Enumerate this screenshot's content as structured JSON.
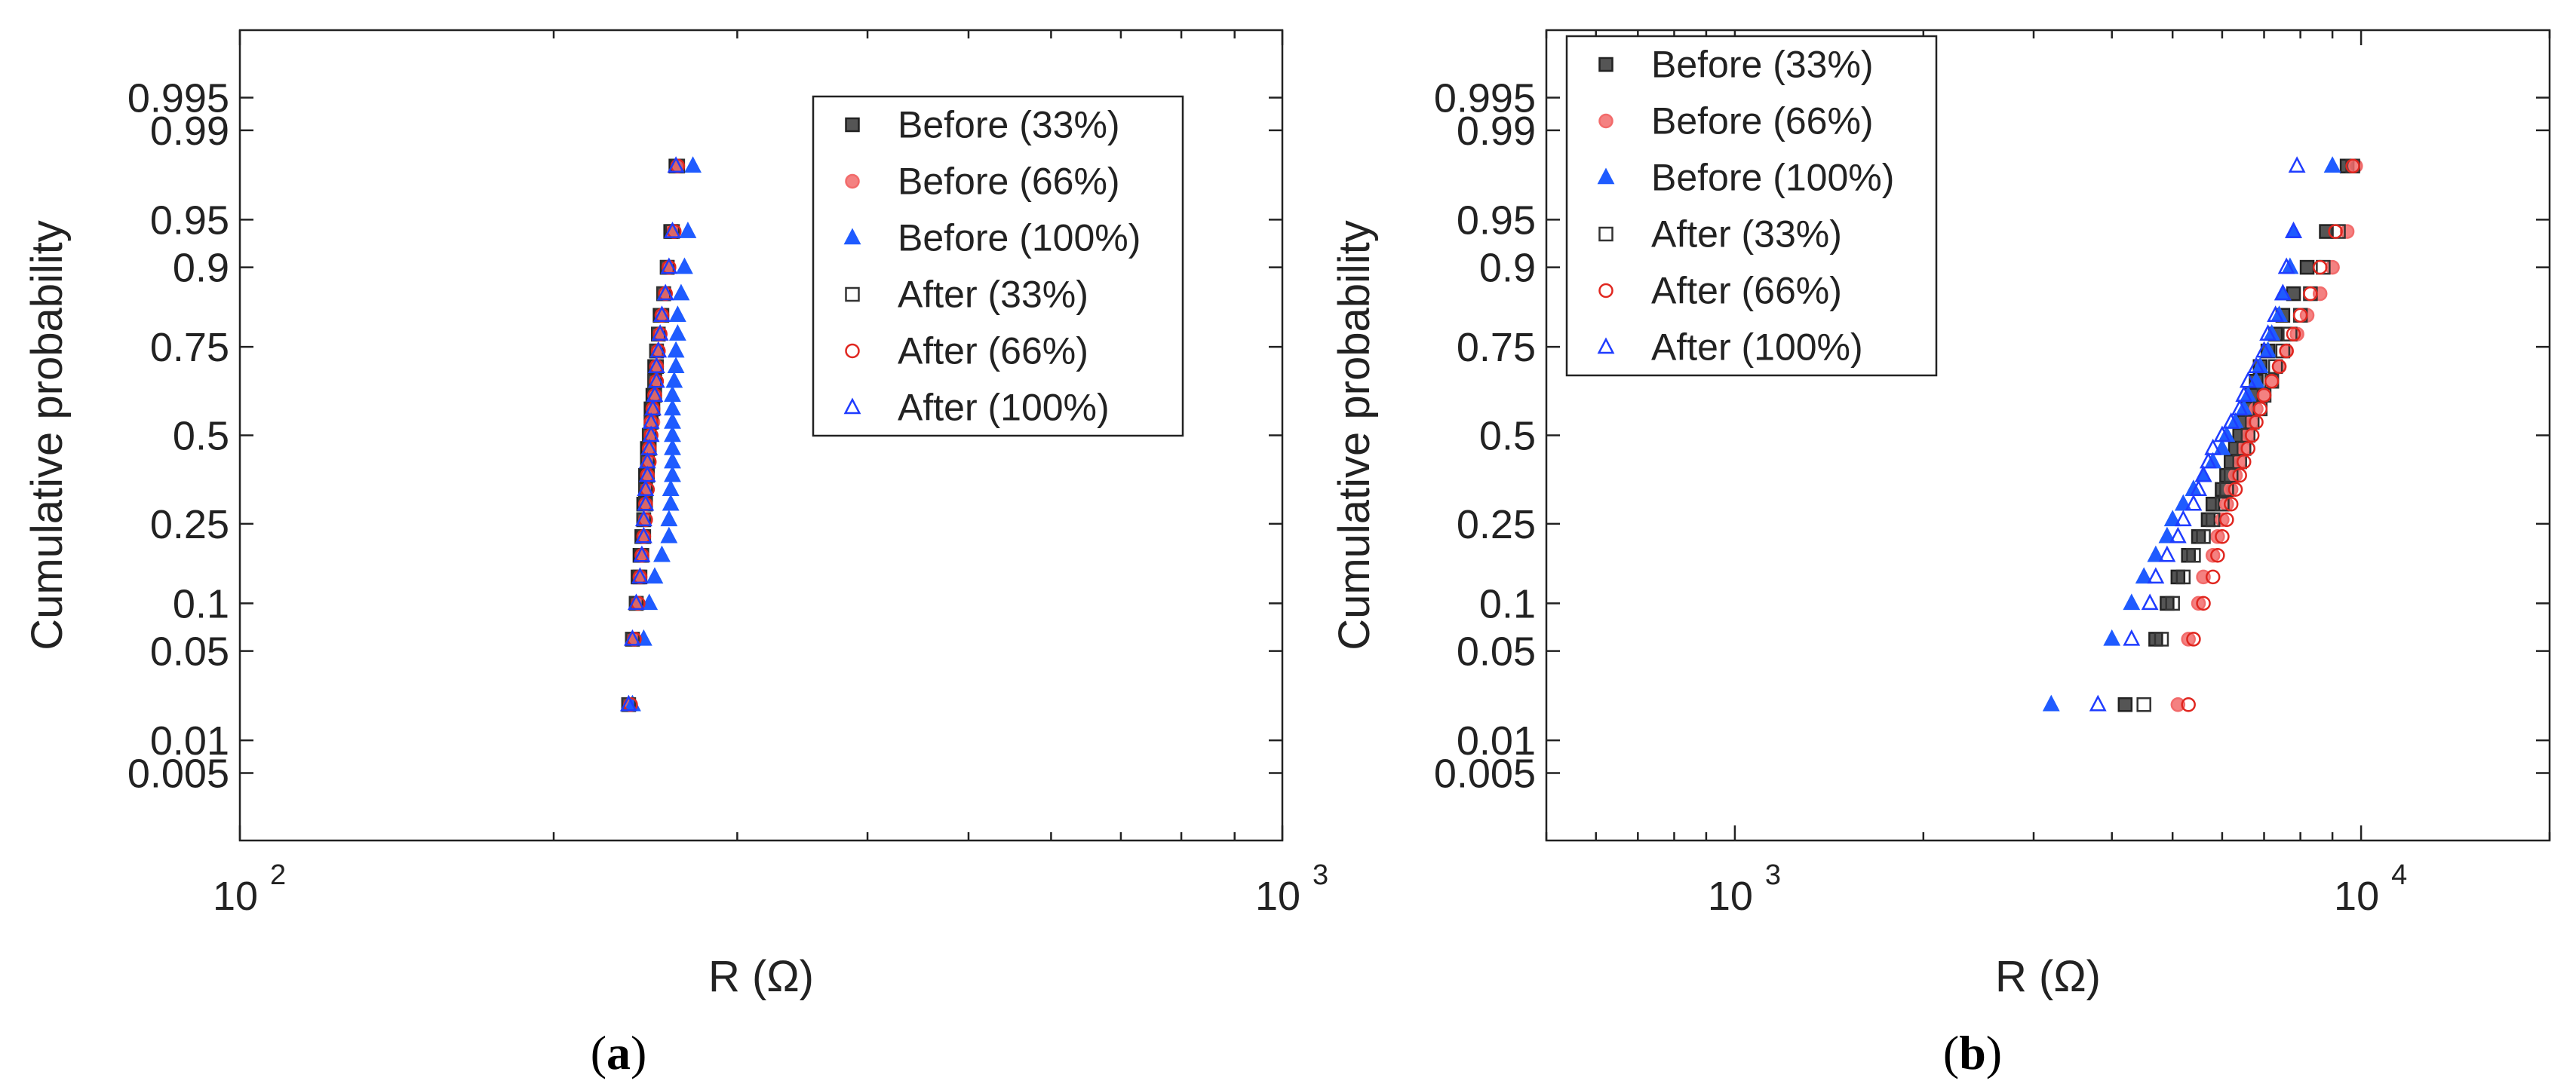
{
  "chart_data": [
    {
      "panel_label": "a",
      "type": "scatter",
      "xscale": "log",
      "yscale": "normal-probability",
      "xlim": [
        100,
        1000
      ],
      "ylim": [
        0.001,
        0.999
      ],
      "xlabel": "R (Ω)",
      "ylabel": "Cumulative probability",
      "x_ticks": [
        100,
        1000
      ],
      "x_tick_labels": [
        {
          "base": "10",
          "exp": "2"
        },
        {
          "base": "10",
          "exp": "3"
        }
      ],
      "y_ticks": [
        0.005,
        0.01,
        0.05,
        0.1,
        0.25,
        0.5,
        0.75,
        0.9,
        0.95,
        0.99,
        0.995
      ],
      "y_tick_labels": [
        "0.005",
        "0.01",
        "0.05",
        "0.1",
        "0.25",
        "0.5",
        "0.75",
        "0.9",
        "0.95",
        "0.99",
        "0.995"
      ],
      "legend_position": "top-right",
      "probabilities": [
        0.02,
        0.06,
        0.1,
        0.14,
        0.18,
        0.22,
        0.26,
        0.3,
        0.34,
        0.38,
        0.42,
        0.46,
        0.5,
        0.54,
        0.58,
        0.62,
        0.66,
        0.7,
        0.74,
        0.78,
        0.82,
        0.86,
        0.9,
        0.94,
        0.98
      ],
      "series": [
        {
          "name": "Before (33%)",
          "marker": "square-filled",
          "color": "#555555",
          "values": [
            236,
            238,
            240,
            241,
            242,
            243,
            244,
            244,
            245,
            245,
            246,
            246,
            247,
            248,
            248,
            249,
            250,
            250,
            251,
            252,
            253,
            255,
            257,
            259,
            262
          ]
        },
        {
          "name": "Before (66%)",
          "marker": "circle-filled",
          "color": "#f26b6b",
          "values": [
            237,
            239,
            241,
            242,
            243,
            244,
            245,
            245,
            246,
            246,
            247,
            247,
            248,
            249,
            249,
            250,
            251,
            251,
            252,
            253,
            254,
            256,
            258,
            260,
            263
          ]
        },
        {
          "name": "Before (100%)",
          "marker": "triangle-filled",
          "color": "#1f5bff",
          "values": [
            238,
            244,
            247,
            250,
            254,
            258,
            258,
            259,
            259,
            260,
            260,
            260,
            260,
            260,
            260,
            260,
            261,
            262,
            262,
            263,
            263,
            265,
            267,
            269,
            272
          ]
        },
        {
          "name": "After (33%)",
          "marker": "square-open",
          "color": "#333333",
          "values": [
            236,
            238,
            240,
            242,
            243,
            244,
            244,
            245,
            245,
            246,
            246,
            247,
            247,
            248,
            249,
            250,
            250,
            251,
            251,
            252,
            254,
            255,
            257,
            260,
            263
          ]
        },
        {
          "name": "After (66%)",
          "marker": "circle-open",
          "color": "#e0261f",
          "values": [
            237,
            239,
            241,
            242,
            243,
            244,
            245,
            245,
            246,
            246,
            247,
            247,
            248,
            248,
            249,
            250,
            251,
            251,
            252,
            253,
            254,
            256,
            258,
            261,
            263
          ]
        },
        {
          "name": "After (100%)",
          "marker": "triangle-open",
          "color": "#1f3cff",
          "values": [
            236,
            238,
            240,
            242,
            243,
            244,
            244,
            245,
            245,
            246,
            246,
            247,
            248,
            248,
            249,
            250,
            251,
            251,
            252,
            253,
            254,
            256,
            258,
            260,
            262
          ]
        }
      ]
    },
    {
      "panel_label": "b",
      "type": "scatter",
      "xscale": "log",
      "yscale": "normal-probability",
      "xlim": [
        500,
        20000
      ],
      "ylim": [
        0.001,
        0.999
      ],
      "xlabel": "R (Ω)",
      "ylabel": "Cumulative probability",
      "x_ticks": [
        1000,
        10000
      ],
      "x_tick_labels": [
        {
          "base": "10",
          "exp": "3"
        },
        {
          "base": "10",
          "exp": "4"
        }
      ],
      "y_ticks": [
        0.005,
        0.01,
        0.05,
        0.1,
        0.25,
        0.5,
        0.75,
        0.9,
        0.95,
        0.99,
        0.995
      ],
      "y_tick_labels": [
        "0.005",
        "0.01",
        "0.05",
        "0.1",
        "0.25",
        "0.5",
        "0.75",
        "0.9",
        "0.95",
        "0.99",
        "0.995"
      ],
      "legend_position": "top-left",
      "probabilities": [
        0.02,
        0.06,
        0.1,
        0.14,
        0.18,
        0.22,
        0.26,
        0.3,
        0.34,
        0.38,
        0.42,
        0.46,
        0.5,
        0.54,
        0.58,
        0.62,
        0.66,
        0.7,
        0.74,
        0.78,
        0.82,
        0.86,
        0.9,
        0.94,
        0.98
      ],
      "series": [
        {
          "name": "Before (33%)",
          "marker": "square-filled",
          "color": "#555555",
          "values": [
            4200,
            4700,
            4900,
            5100,
            5300,
            5500,
            5700,
            5800,
            6000,
            6100,
            6200,
            6300,
            6400,
            6500,
            6600,
            6700,
            6800,
            6900,
            7100,
            7300,
            7500,
            7800,
            8200,
            8800,
            9500
          ]
        },
        {
          "name": "Before (66%)",
          "marker": "circle-filled",
          "color": "#f26b6b",
          "values": [
            5100,
            5300,
            5500,
            5600,
            5800,
            5900,
            6000,
            6100,
            6200,
            6300,
            6400,
            6500,
            6600,
            6700,
            6800,
            7000,
            7200,
            7400,
            7600,
            7900,
            8200,
            8600,
            9000,
            9500,
            9800
          ]
        },
        {
          "name": "Before (100%)",
          "marker": "triangle-filled",
          "color": "#1f5bff",
          "values": [
            3200,
            4000,
            4300,
            4500,
            4700,
            4900,
            5000,
            5200,
            5400,
            5600,
            5800,
            6000,
            6100,
            6300,
            6500,
            6600,
            6800,
            6900,
            7100,
            7200,
            7400,
            7500,
            7700,
            7800,
            9000
          ]
        },
        {
          "name": "After (33%)",
          "marker": "square-open",
          "color": "#333333",
          "values": [
            4500,
            4800,
            5000,
            5200,
            5400,
            5600,
            5800,
            6000,
            6100,
            6200,
            6400,
            6500,
            6600,
            6700,
            6900,
            7000,
            7200,
            7300,
            7500,
            7700,
            8000,
            8300,
            8700,
            9200,
            9700
          ]
        },
        {
          "name": "After (66%)",
          "marker": "circle-open",
          "color": "#e0261f",
          "values": [
            5300,
            5400,
            5600,
            5800,
            5900,
            6000,
            6100,
            6200,
            6300,
            6400,
            6500,
            6600,
            6700,
            6800,
            6900,
            7000,
            7200,
            7400,
            7600,
            7800,
            8000,
            8300,
            8600,
            9100,
            9700
          ]
        },
        {
          "name": "After (100%)",
          "marker": "triangle-open",
          "color": "#1f3cff",
          "values": [
            3800,
            4300,
            4600,
            4700,
            4900,
            5100,
            5200,
            5400,
            5500,
            5600,
            5700,
            5800,
            6000,
            6200,
            6400,
            6500,
            6600,
            6800,
            7000,
            7100,
            7300,
            7500,
            7600,
            7800,
            7900
          ]
        }
      ]
    }
  ]
}
